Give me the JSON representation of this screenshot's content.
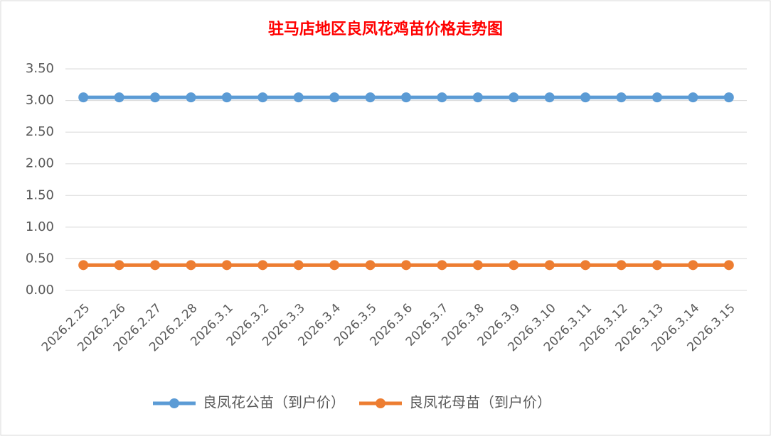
{
  "chart_data": {
    "type": "line",
    "title": "驻马店地区良凤花鸡苗价格走势图",
    "categories": [
      "2026.2.25",
      "2026.2.26",
      "2026.2.27",
      "2026.2.28",
      "2026.3.1",
      "2026.3.2",
      "2026.3.3",
      "2026.3.4",
      "2026.3.5",
      "2026.3.6",
      "2026.3.7",
      "2026.3.8",
      "2026.3.9",
      "2026.3.10",
      "2026.3.11",
      "2026.3.12",
      "2026.3.13",
      "2026.3.14",
      "2026.3.15"
    ],
    "series": [
      {
        "name": "良凤花公苗（到户价）",
        "color": "#5b9bd5",
        "values": [
          3.05,
          3.05,
          3.05,
          3.05,
          3.05,
          3.05,
          3.05,
          3.05,
          3.05,
          3.05,
          3.05,
          3.05,
          3.05,
          3.05,
          3.05,
          3.05,
          3.05,
          3.05,
          3.05
        ]
      },
      {
        "name": "良凤花母苗（到户价）",
        "color": "#ed7d31",
        "values": [
          0.4,
          0.4,
          0.4,
          0.4,
          0.4,
          0.4,
          0.4,
          0.4,
          0.4,
          0.4,
          0.4,
          0.4,
          0.4,
          0.4,
          0.4,
          0.4,
          0.4,
          0.4,
          0.4
        ]
      }
    ],
    "ylim": [
      0,
      3.5
    ],
    "yticks": [
      {
        "value": 0,
        "label": "0.00"
      },
      {
        "value": 0.5,
        "label": "0.50"
      },
      {
        "value": 1,
        "label": "1.00"
      },
      {
        "value": 1.5,
        "label": "1.50"
      },
      {
        "value": 2,
        "label": "2.00"
      },
      {
        "value": 2.5,
        "label": "2.50"
      },
      {
        "value": 3,
        "label": "3.00"
      },
      {
        "value": 3.5,
        "label": "3.50"
      }
    ],
    "grid": true,
    "legend": "bottom"
  }
}
